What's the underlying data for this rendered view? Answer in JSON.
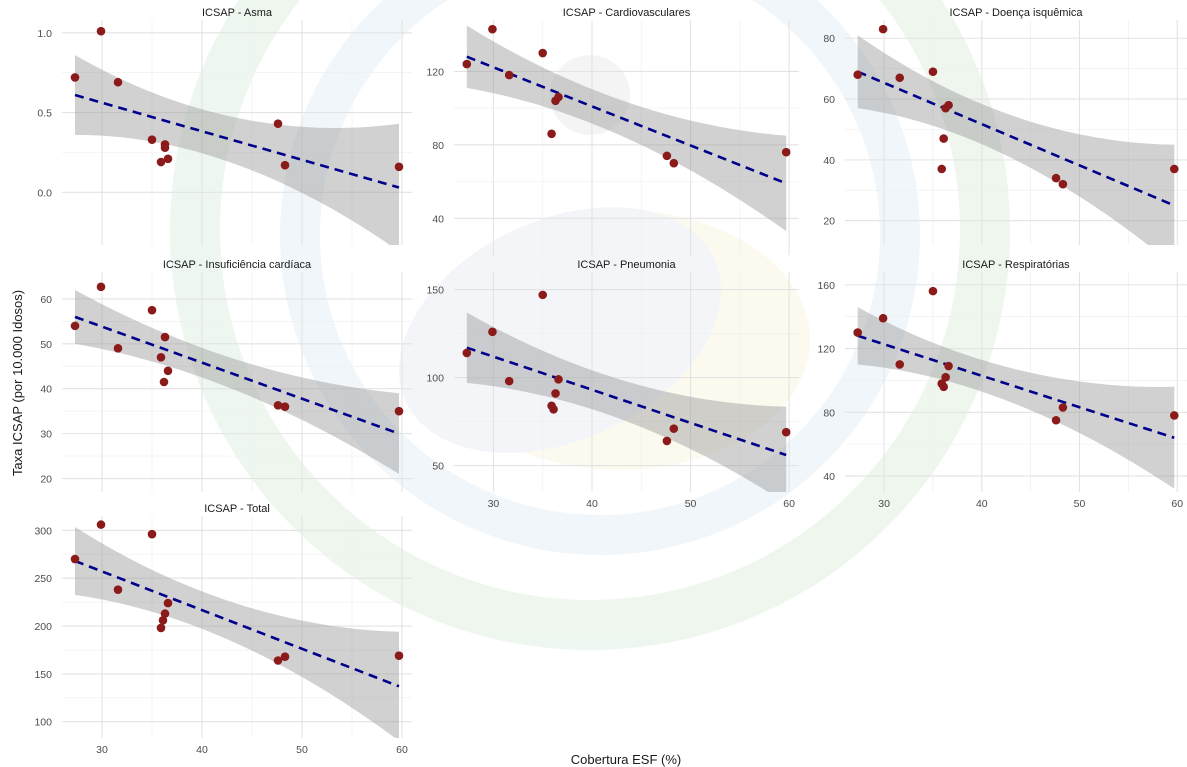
{
  "xlabel": "Cobertura ESF (%)",
  "ylabel": "Taxa ICSAP (por 10.000 Idosos)",
  "colors": {
    "points": "#8b1a1a",
    "fit_line": "#00008b",
    "band": "#9a9a9a",
    "grid": "#e3e3e3"
  },
  "chart_data": [
    {
      "type": "scatter",
      "title": "ICSAP - Asma",
      "xlim": [
        26,
        61
      ],
      "ylim": [
        -0.33,
        1.08
      ],
      "xticks": [
        30,
        40,
        50,
        60
      ],
      "yticks": [
        0.0,
        0.5,
        1.0
      ],
      "ytick_labels": [
        "0.0",
        "0.5",
        "1.0"
      ],
      "show_x_ticklabels": false,
      "x": [
        27.3,
        29.9,
        31.6,
        35.0,
        35.9,
        36.3,
        36.3,
        36.6,
        47.6,
        48.3,
        59.7
      ],
      "y": [
        0.72,
        1.01,
        0.69,
        0.33,
        0.19,
        0.3,
        0.28,
        0.21,
        0.43,
        0.17,
        0.16
      ],
      "fit": {
        "x0": 27.3,
        "x1": 59.7,
        "y0": 0.61,
        "y1": 0.03
      },
      "band": {
        "lo0": 0.36,
        "hi0": 0.86,
        "lo1": -0.37,
        "hi1": 0.43
      }
    },
    {
      "type": "scatter",
      "title": "ICSAP - Cardiovasculares",
      "xlim": [
        26,
        61
      ],
      "ylim": [
        20,
        148
      ],
      "xticks": [
        30,
        40,
        50,
        60
      ],
      "yticks": [
        40,
        80,
        120
      ],
      "ytick_labels": [
        "40",
        "80",
        "120"
      ],
      "show_x_ticklabels": false,
      "x": [
        27.3,
        29.9,
        31.6,
        35.0,
        35.9,
        36.3,
        36.6,
        47.6,
        48.3,
        59.7
      ],
      "y": [
        124,
        143,
        118,
        130,
        86,
        104,
        106,
        74,
        70,
        76
      ],
      "fit": {
        "x0": 27.3,
        "x1": 59.7,
        "y0": 128,
        "y1": 59
      },
      "band": {
        "lo0": 112,
        "hi0": 146,
        "lo1": 33,
        "hi1": 85
      }
    },
    {
      "type": "scatter",
      "title": "ICSAP - Doença isquêmica",
      "xlim": [
        26,
        61
      ],
      "ylim": [
        12,
        86
      ],
      "xticks": [
        30,
        40,
        50,
        60
      ],
      "yticks": [
        20,
        40,
        60,
        80
      ],
      "ytick_labels": [
        "20",
        "40",
        "60",
        "80"
      ],
      "show_x_ticklabels": false,
      "x": [
        27.3,
        29.9,
        31.6,
        35.0,
        35.9,
        36.3,
        36.6,
        36.1,
        47.6,
        48.3,
        59.7
      ],
      "y": [
        68,
        83,
        67,
        69,
        37,
        57,
        58,
        47,
        34,
        32,
        37
      ],
      "fit": {
        "x0": 27.3,
        "x1": 59.7,
        "y0": 69,
        "y1": 25
      },
      "band": {
        "lo0": 57,
        "hi0": 81,
        "lo1": 5,
        "hi1": 45
      }
    },
    {
      "type": "scatter",
      "title": "ICSAP - Insuficiência cardíaca",
      "xlim": [
        26,
        61
      ],
      "ylim": [
        17,
        66
      ],
      "xticks": [
        30,
        40,
        50,
        60
      ],
      "yticks": [
        20,
        30,
        40,
        50,
        60
      ],
      "ytick_labels": [
        "20",
        "30",
        "40",
        "50",
        "60"
      ],
      "show_x_ticklabels": false,
      "x": [
        27.3,
        29.9,
        31.6,
        35.0,
        35.9,
        36.3,
        36.6,
        36.2,
        47.6,
        48.3,
        59.7
      ],
      "y": [
        54,
        62.7,
        49,
        57.5,
        47,
        51.5,
        44,
        41.5,
        36.3,
        36,
        35
      ],
      "fit": {
        "x0": 27.3,
        "x1": 59.7,
        "y0": 56,
        "y1": 30
      },
      "band": {
        "lo0": 50,
        "hi0": 62,
        "lo1": 21,
        "hi1": 39
      }
    },
    {
      "type": "scatter",
      "title": "ICSAP - Pneumonia",
      "xlim": [
        26,
        61
      ],
      "ylim": [
        35,
        160
      ],
      "xticks": [
        30,
        40,
        50,
        60
      ],
      "yticks": [
        50,
        100,
        150
      ],
      "ytick_labels": [
        "50",
        "100",
        "150"
      ],
      "show_x_ticklabels": true,
      "x": [
        27.3,
        29.9,
        31.6,
        35.0,
        35.9,
        36.3,
        36.6,
        36.1,
        47.6,
        48.3,
        59.7
      ],
      "y": [
        114,
        126,
        98,
        147,
        84,
        91,
        99,
        82,
        64,
        71,
        69
      ],
      "fit": {
        "x0": 27.3,
        "x1": 59.7,
        "y0": 117,
        "y1": 56
      },
      "band": {
        "lo0": 97,
        "hi0": 137,
        "lo1": 29,
        "hi1": 84
      }
    },
    {
      "type": "scatter",
      "title": "ICSAP - Respiratórias",
      "xlim": [
        26,
        61
      ],
      "ylim": [
        30,
        168
      ],
      "xticks": [
        30,
        40,
        50,
        60
      ],
      "yticks": [
        40,
        80,
        120,
        160
      ],
      "ytick_labels": [
        "40",
        "80",
        "120",
        "160"
      ],
      "show_x_ticklabels": true,
      "x": [
        27.3,
        29.9,
        31.6,
        35.0,
        35.9,
        36.3,
        36.6,
        36.1,
        47.6,
        48.3,
        59.7
      ],
      "y": [
        130,
        139,
        110,
        156,
        98,
        102,
        109,
        96,
        75,
        83,
        78
      ],
      "fit": {
        "x0": 27.3,
        "x1": 59.7,
        "y0": 128,
        "y1": 64
      },
      "band": {
        "lo0": 110,
        "hi0": 146,
        "lo1": 33,
        "hi1": 97
      }
    },
    {
      "type": "scatter",
      "title": "ICSAP - Total",
      "xlim": [
        26,
        61
      ],
      "ylim": [
        83,
        315
      ],
      "xticks": [
        30,
        40,
        50,
        60
      ],
      "yticks": [
        100,
        150,
        200,
        250,
        300
      ],
      "ytick_labels": [
        "100",
        "150",
        "200",
        "250",
        "300"
      ],
      "show_x_ticklabels": true,
      "x": [
        27.3,
        29.9,
        31.6,
        35.0,
        35.9,
        36.3,
        36.6,
        36.1,
        47.6,
        48.3,
        59.7
      ],
      "y": [
        270,
        306,
        238,
        296,
        198,
        213,
        224,
        206,
        164,
        168,
        169
      ],
      "fit": {
        "x0": 27.3,
        "x1": 59.7,
        "y0": 268,
        "y1": 137
      },
      "band": {
        "lo0": 233,
        "hi0": 304,
        "lo1": 80,
        "hi1": 194
      }
    }
  ]
}
